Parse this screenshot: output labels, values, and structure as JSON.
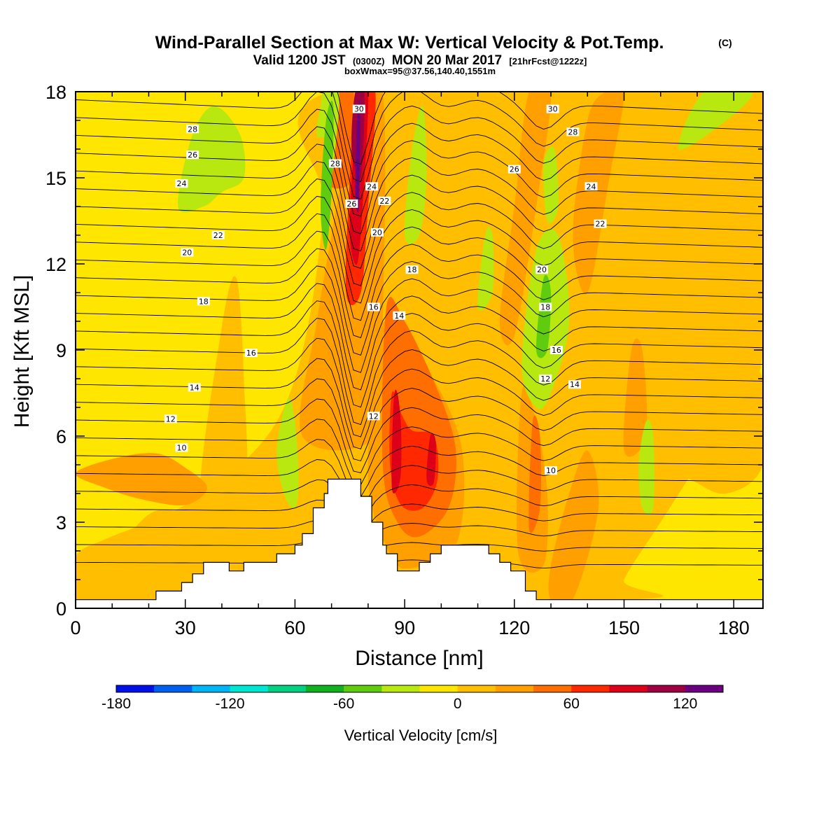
{
  "header": {
    "title": "Wind-Parallel Section at Max W: Vertical Velocity & Pot.Temp.",
    "copyright": "(C)",
    "valid_prefix": "Valid 1200 JST",
    "valid_utc": "(0300Z)",
    "valid_date": "MON 20 Mar 2017",
    "forecast": "[21hrFcst@1222z]",
    "box_info": "boxWmax=95@37.56,140.40,1551m"
  },
  "chart_data": {
    "type": "heatmap",
    "xlabel": "Distance [nm]",
    "ylabel": "Height [Kft MSL]",
    "xlim": [
      0,
      188
    ],
    "ylim": [
      0,
      18
    ],
    "x_ticks": [
      "0",
      "30",
      "60",
      "90",
      "120",
      "150",
      "180"
    ],
    "y_ticks": [
      "0",
      "3",
      "6",
      "9",
      "12",
      "15",
      "18"
    ],
    "x_tick_values": [
      0,
      30,
      60,
      90,
      120,
      150,
      180
    ],
    "y_tick_values": [
      0,
      3,
      6,
      9,
      12,
      15,
      18
    ],
    "background_color": "#FFE600",
    "colorbar": {
      "label": "Vertical Velocity [cm/s]",
      "min": -180,
      "max": 140,
      "step": 20,
      "tick_labels": [
        "-180",
        "-120",
        "-60",
        "0",
        "60",
        "120"
      ],
      "tick_values": [
        -180,
        -120,
        -60,
        0,
        60,
        120
      ],
      "colors": [
        "#0010E8",
        "#0060F0",
        "#00B4F8",
        "#00E6D2",
        "#00D080",
        "#10B020",
        "#60CC10",
        "#B8E810",
        "#FFE600",
        "#FFBE00",
        "#FFA000",
        "#FF6E00",
        "#FF2800",
        "#DC0018",
        "#A00040",
        "#6A0080"
      ]
    },
    "terrain": [
      [
        0,
        0.3
      ],
      [
        22,
        0.3
      ],
      [
        22,
        0.6
      ],
      [
        29,
        0.6
      ],
      [
        29,
        0.9
      ],
      [
        32,
        0.9
      ],
      [
        32,
        1.2
      ],
      [
        35,
        1.2
      ],
      [
        35,
        1.6
      ],
      [
        42,
        1.6
      ],
      [
        42,
        1.3
      ],
      [
        46,
        1.3
      ],
      [
        46,
        1.6
      ],
      [
        55,
        1.6
      ],
      [
        55,
        1.9
      ],
      [
        60,
        1.9
      ],
      [
        60,
        2.2
      ],
      [
        62,
        2.2
      ],
      [
        62,
        2.6
      ],
      [
        65,
        2.6
      ],
      [
        65,
        3.5
      ],
      [
        68,
        3.5
      ],
      [
        68,
        4.0
      ],
      [
        69,
        4.0
      ],
      [
        69,
        4.5
      ],
      [
        78,
        4.5
      ],
      [
        78,
        3.9
      ],
      [
        81,
        3.9
      ],
      [
        81,
        3.0
      ],
      [
        84,
        3.0
      ],
      [
        84,
        2.2
      ],
      [
        85,
        2.2
      ],
      [
        85,
        1.9
      ],
      [
        88,
        1.9
      ],
      [
        88,
        1.3
      ],
      [
        94,
        1.3
      ],
      [
        94,
        1.6
      ],
      [
        97,
        1.6
      ],
      [
        97,
        1.9
      ],
      [
        100,
        1.9
      ],
      [
        100,
        2.2
      ],
      [
        113,
        2.2
      ],
      [
        113,
        1.9
      ],
      [
        116,
        1.9
      ],
      [
        116,
        1.6
      ],
      [
        119,
        1.6
      ],
      [
        119,
        1.3
      ],
      [
        123,
        1.3
      ],
      [
        123,
        0.6
      ],
      [
        126,
        0.6
      ],
      [
        126,
        0.3
      ],
      [
        188,
        0.3
      ]
    ],
    "velocity_regions": [
      {
        "value": 10,
        "points": [
          [
            0,
            0.3
          ],
          [
            0,
            1.8
          ],
          [
            8,
            2.4
          ],
          [
            20,
            3.0
          ],
          [
            30,
            3.6
          ],
          [
            40,
            4.4
          ],
          [
            55,
            6.5
          ],
          [
            63,
            9.5
          ],
          [
            68,
            14
          ],
          [
            70,
            18
          ],
          [
            188,
            18
          ],
          [
            188,
            9
          ],
          [
            180,
            7
          ],
          [
            170,
            5
          ],
          [
            160,
            3
          ],
          [
            150,
            1
          ],
          [
            150,
            0.3
          ]
        ]
      },
      {
        "value": 10,
        "points": [
          [
            8,
            0.3
          ],
          [
            12,
            2.0
          ],
          [
            22,
            3.4
          ],
          [
            35,
            3.0
          ],
          [
            44,
            2.2
          ],
          [
            48,
            0.3
          ]
        ]
      },
      {
        "value": 10,
        "points": [
          [
            34,
            3.5
          ],
          [
            40,
            9.8
          ],
          [
            44,
            11.5
          ],
          [
            46,
            8
          ],
          [
            46,
            4
          ]
        ]
      },
      {
        "value": 10,
        "points": [
          [
            154,
            7
          ],
          [
            160,
            9
          ],
          [
            168,
            10
          ],
          [
            178,
            9
          ],
          [
            188,
            8
          ],
          [
            188,
            5
          ],
          [
            178,
            4
          ],
          [
            168,
            4.5
          ],
          [
            160,
            5
          ]
        ]
      },
      {
        "value": 30,
        "points": [
          [
            62,
            6
          ],
          [
            66,
            10
          ],
          [
            70,
            13
          ],
          [
            74,
            16
          ],
          [
            76,
            18
          ],
          [
            84,
            18
          ],
          [
            84,
            10
          ],
          [
            82,
            6
          ]
        ]
      },
      {
        "value": 30,
        "points": [
          [
            80,
            4.5
          ],
          [
            83,
            9.5
          ],
          [
            88,
            9.6
          ],
          [
            100,
            7.5
          ],
          [
            106,
            5.2
          ],
          [
            104,
            2.2
          ],
          [
            92,
            1.4
          ],
          [
            86,
            1.9
          ]
        ]
      },
      {
        "value": 30,
        "points": [
          [
            121,
            2
          ],
          [
            122,
            7.5
          ],
          [
            126,
            6.5
          ],
          [
            129,
            4
          ],
          [
            128,
            1.5
          ]
        ]
      },
      {
        "value": 30,
        "points": [
          [
            130,
            1.5
          ],
          [
            135,
            4
          ],
          [
            140,
            5.5
          ],
          [
            143,
            3.5
          ],
          [
            136,
            0.3
          ],
          [
            130,
            0.3
          ]
        ]
      },
      {
        "value": 30,
        "points": [
          [
            116,
            10
          ],
          [
            120,
            14
          ],
          [
            124,
            18
          ],
          [
            130,
            18
          ],
          [
            126,
            14
          ],
          [
            120,
            9.5
          ]
        ]
      },
      {
        "value": 30,
        "points": [
          [
            150,
            5.5
          ],
          [
            152,
            9
          ],
          [
            155,
            9
          ],
          [
            156,
            6
          ]
        ]
      },
      {
        "value": 30,
        "points": [
          [
            136,
            13
          ],
          [
            140,
            17
          ],
          [
            145,
            18
          ],
          [
            150,
            18
          ],
          [
            146,
            15
          ],
          [
            140,
            11
          ]
        ]
      },
      {
        "value": 30,
        "points": [
          [
            0,
            4.7
          ],
          [
            10,
            5.2
          ],
          [
            22,
            5.4
          ],
          [
            30,
            4.9
          ],
          [
            36,
            4.2
          ],
          [
            30,
            3.6
          ],
          [
            18,
            3.8
          ],
          [
            8,
            4.2
          ]
        ]
      },
      {
        "value": 50,
        "points": [
          [
            84,
            5
          ],
          [
            85,
            10.5
          ],
          [
            90,
            10
          ],
          [
            99,
            7.6
          ],
          [
            104,
            5.5
          ],
          [
            102,
            3.5
          ],
          [
            94,
            2.5
          ],
          [
            88,
            3
          ]
        ]
      },
      {
        "value": 50,
        "points": [
          [
            124,
            2.8
          ],
          [
            125,
            6.5
          ],
          [
            127,
            6
          ],
          [
            127,
            3.5
          ]
        ]
      },
      {
        "value": 50,
        "points": [
          [
            68,
            15
          ],
          [
            72,
            18
          ],
          [
            76,
            18
          ],
          [
            76,
            15
          ]
        ]
      },
      {
        "value": 70,
        "points": [
          [
            86,
            5
          ],
          [
            86.5,
            7.5
          ],
          [
            89,
            6.8
          ],
          [
            92,
            6.2
          ],
          [
            98,
            6
          ],
          [
            99,
            4.5
          ],
          [
            95,
            3.5
          ],
          [
            89,
            3.6
          ]
        ]
      },
      {
        "value": 70,
        "points": [
          [
            74,
            11
          ],
          [
            75,
            15
          ],
          [
            77,
            18
          ],
          [
            82,
            18
          ],
          [
            80,
            14
          ],
          [
            78,
            11
          ]
        ]
      },
      {
        "value": 90,
        "points": [
          [
            86.5,
            4.2
          ],
          [
            87,
            7.2
          ],
          [
            88,
            7.5
          ],
          [
            89,
            6.3
          ],
          [
            88.8,
            4.5
          ]
        ]
      },
      {
        "value": 90,
        "points": [
          [
            96,
            4.5
          ],
          [
            97,
            6
          ],
          [
            98.5,
            5.8
          ],
          [
            98,
            4.4
          ]
        ]
      },
      {
        "value": 90,
        "points": [
          [
            75,
            13
          ],
          [
            76,
            16
          ],
          [
            77,
            18
          ],
          [
            80,
            18
          ],
          [
            78.5,
            14
          ],
          [
            77,
            12
          ]
        ]
      },
      {
        "value": 110,
        "points": [
          [
            75.5,
            16
          ],
          [
            76.5,
            18
          ],
          [
            79,
            18
          ],
          [
            78,
            15
          ]
        ]
      },
      {
        "value": 130,
        "points": [
          [
            76.5,
            14.5
          ],
          [
            77,
            17
          ],
          [
            77.8,
            17.5
          ],
          [
            77.5,
            14
          ]
        ]
      },
      {
        "value": -30,
        "points": [
          [
            28,
            14
          ],
          [
            32,
            16.5
          ],
          [
            38,
            17.5
          ],
          [
            45,
            16.5
          ],
          [
            46,
            15
          ],
          [
            40,
            14.5
          ],
          [
            35,
            14
          ]
        ]
      },
      {
        "value": -30,
        "points": [
          [
            55,
            5.5
          ],
          [
            58,
            7.3
          ],
          [
            60,
            6.5
          ],
          [
            61,
            4.5
          ],
          [
            60,
            3.5
          ],
          [
            57,
            4
          ]
        ]
      },
      {
        "value": -30,
        "points": [
          [
            66,
            16.5
          ],
          [
            67,
            17.5
          ],
          [
            68,
            18
          ],
          [
            72,
            18
          ],
          [
            71,
            16
          ],
          [
            69,
            14
          ],
          [
            68,
            12.5
          ],
          [
            69,
            16
          ]
        ]
      },
      {
        "value": -30,
        "points": [
          [
            90,
            13
          ],
          [
            92,
            16
          ],
          [
            95,
            17.5
          ],
          [
            96,
            15
          ],
          [
            94,
            13
          ]
        ]
      },
      {
        "value": -30,
        "points": [
          [
            110,
            10.5
          ],
          [
            112,
            13
          ],
          [
            114,
            13
          ],
          [
            114,
            11
          ]
        ]
      },
      {
        "value": -30,
        "points": [
          [
            122,
            8.5
          ],
          [
            126,
            12.5
          ],
          [
            132,
            13
          ],
          [
            135,
            10
          ],
          [
            130,
            7.5
          ],
          [
            126,
            7
          ]
        ]
      },
      {
        "value": -30,
        "points": [
          [
            154,
            5
          ],
          [
            156,
            6.5
          ],
          [
            158,
            6
          ],
          [
            158,
            3.5
          ],
          [
            155,
            3.5
          ]
        ]
      },
      {
        "value": -30,
        "points": [
          [
            165,
            16
          ],
          [
            172,
            18
          ],
          [
            185,
            18
          ],
          [
            178,
            17
          ]
        ]
      },
      {
        "value": -30,
        "points": [
          [
            128,
            15.5
          ],
          [
            131,
            16
          ],
          [
            132,
            14
          ],
          [
            129,
            13.5
          ]
        ]
      },
      {
        "value": -50,
        "points": [
          [
            67,
            14
          ],
          [
            68.5,
            17
          ],
          [
            70.5,
            17.5
          ],
          [
            70,
            14.5
          ],
          [
            68.5,
            12.5
          ]
        ]
      },
      {
        "value": -50,
        "points": [
          [
            126,
            9
          ],
          [
            128,
            11.5
          ],
          [
            130,
            11
          ],
          [
            129,
            9
          ]
        ]
      }
    ],
    "theta_labels": [
      {
        "text": "30",
        "x": 77.5,
        "y": 17.4
      },
      {
        "text": "28",
        "x": 71,
        "y": 15.5
      },
      {
        "text": "26",
        "x": 75.5,
        "y": 14.1
      },
      {
        "text": "24",
        "x": 81,
        "y": 14.7
      },
      {
        "text": "22",
        "x": 84.5,
        "y": 14.2
      },
      {
        "text": "20",
        "x": 82.5,
        "y": 13.1
      },
      {
        "text": "18",
        "x": 92,
        "y": 11.8
      },
      {
        "text": "16",
        "x": 81.5,
        "y": 10.5
      },
      {
        "text": "14",
        "x": 88.5,
        "y": 10.2
      },
      {
        "text": "12",
        "x": 81.5,
        "y": 6.7
      },
      {
        "text": "28",
        "x": 32,
        "y": 16.7
      },
      {
        "text": "26",
        "x": 32,
        "y": 15.8
      },
      {
        "text": "24",
        "x": 29,
        "y": 14.8
      },
      {
        "text": "22",
        "x": 39,
        "y": 13.0
      },
      {
        "text": "20",
        "x": 30.5,
        "y": 12.4
      },
      {
        "text": "18",
        "x": 35,
        "y": 10.7
      },
      {
        "text": "16",
        "x": 48,
        "y": 8.9
      },
      {
        "text": "14",
        "x": 32.5,
        "y": 7.7
      },
      {
        "text": "12",
        "x": 26,
        "y": 6.6
      },
      {
        "text": "10",
        "x": 29,
        "y": 5.6
      },
      {
        "text": "30",
        "x": 130.5,
        "y": 17.4
      },
      {
        "text": "28",
        "x": 136,
        "y": 16.6
      },
      {
        "text": "26",
        "x": 120,
        "y": 15.3
      },
      {
        "text": "24",
        "x": 141,
        "y": 14.7
      },
      {
        "text": "22",
        "x": 143.5,
        "y": 13.4
      },
      {
        "text": "20",
        "x": 127.5,
        "y": 11.8
      },
      {
        "text": "18",
        "x": 128.5,
        "y": 10.5
      },
      {
        "text": "16",
        "x": 131.5,
        "y": 9.0
      },
      {
        "text": "14",
        "x": 136.5,
        "y": 7.8
      },
      {
        "text": "12",
        "x": 128.5,
        "y": 8.0
      },
      {
        "text": "10",
        "x": 130,
        "y": 4.8
      }
    ]
  }
}
